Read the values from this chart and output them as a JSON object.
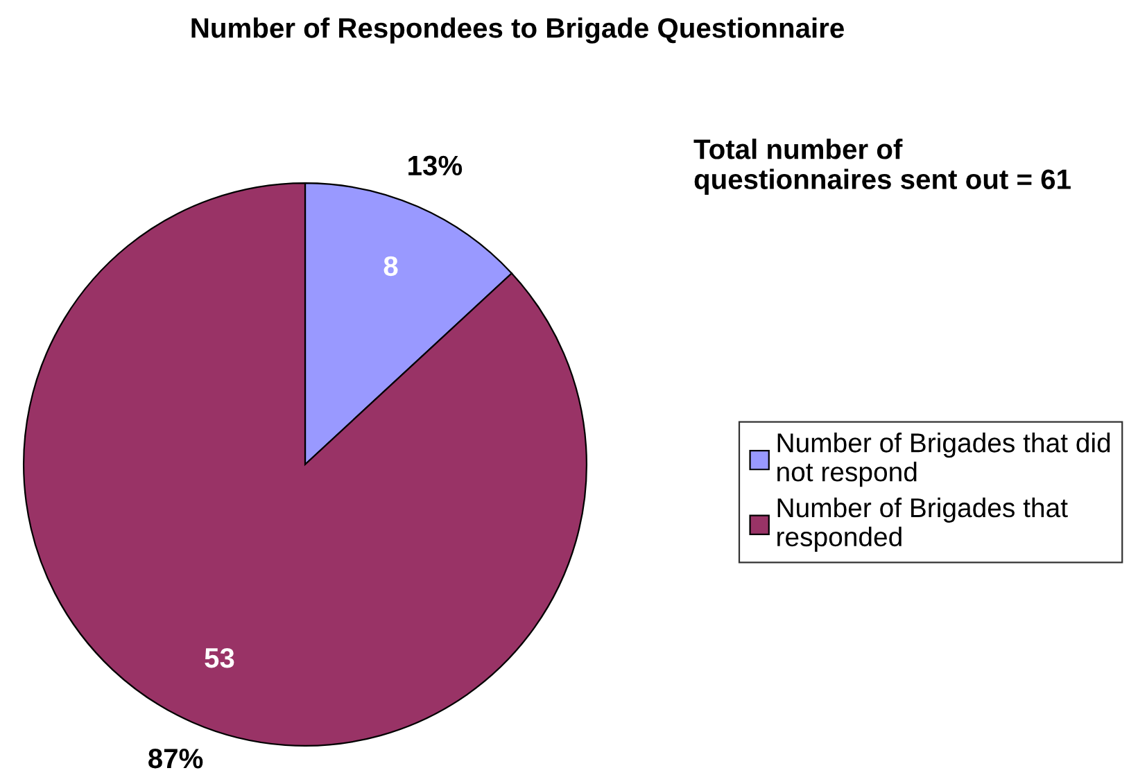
{
  "chart_data": {
    "type": "pie",
    "title": "Number of Respondees to Brigade Questionnaire",
    "categories": [
      "Number of Brigades that did\nnot respond",
      "Number of Brigades that\nresponded"
    ],
    "values": [
      8,
      53
    ],
    "colors": [
      "#9999ff",
      "#993366"
    ],
    "data_labels": true,
    "annotations": [
      {
        "text": "13%",
        "x": "Number of Brigades that did\nnot respond"
      },
      {
        "text": "87%",
        "x": "Number of Brigades that\nresponded"
      },
      "Total number of\nquestionnaires sent out = 61"
    ],
    "legend": "right"
  }
}
